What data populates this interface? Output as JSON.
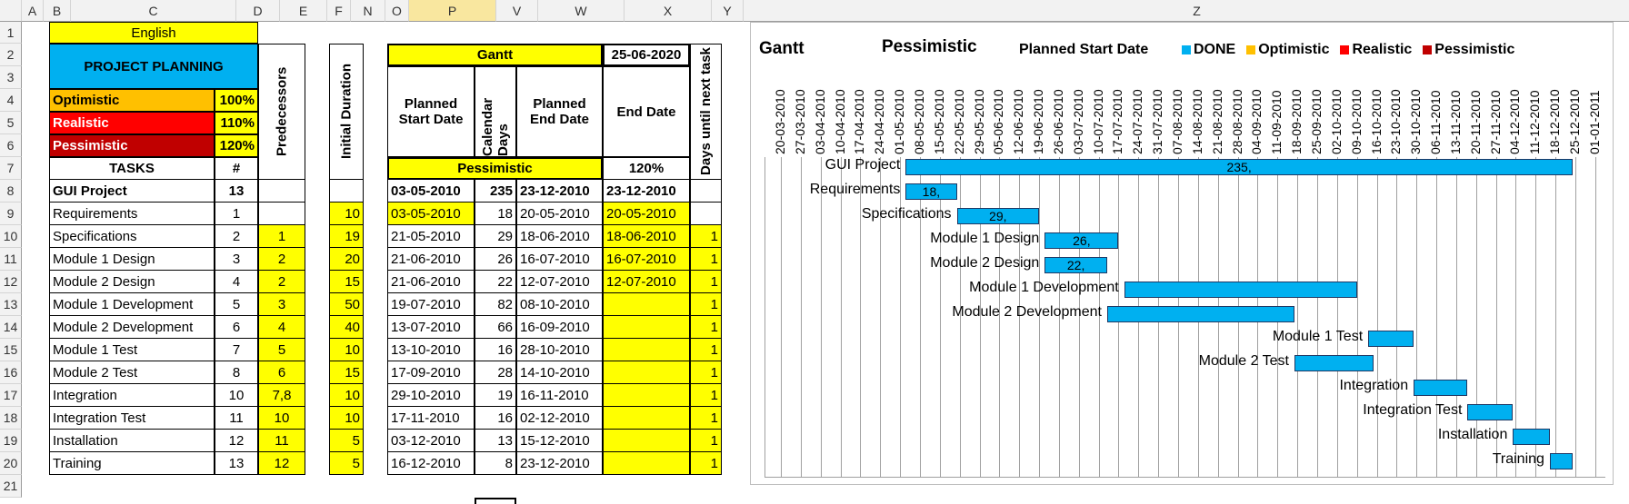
{
  "columns": [
    "A",
    "B",
    "C",
    "D",
    "E",
    "F",
    "N",
    "O",
    "P",
    "V",
    "W",
    "X",
    "Y",
    "Z"
  ],
  "rows": [
    "1",
    "2",
    "3",
    "4",
    "5",
    "6",
    "7",
    "8",
    "9",
    "10",
    "11",
    "12",
    "13",
    "14",
    "15",
    "16",
    "17",
    "18",
    "19",
    "20",
    "21"
  ],
  "sheet": {
    "language": "English",
    "title": "PROJECT PLANNING",
    "scenarios": [
      {
        "label": "Optimistic",
        "value": "100%"
      },
      {
        "label": "Realistic",
        "value": "110%"
      },
      {
        "label": "Pessimistic",
        "value": "120%"
      }
    ],
    "tasks_header": "TASKS",
    "num_header": "#",
    "predecessors_header": "Predecessors",
    "initial_duration_header": "Initial Duration",
    "gantt_header": "Gantt",
    "date": "25-06-2020",
    "planned_start_header": "Planned Start Date",
    "calendar_days_header": "Calendar Days",
    "planned_end_header": "Planned End Date",
    "end_date_header": "End Date",
    "days_next_header": "Days until next task",
    "scenario_name": "Pessimistic",
    "scenario_value": "120%",
    "tasks": [
      {
        "name": "GUI Project",
        "num": "13",
        "pred": "",
        "dur": "",
        "start": "03-05-2010",
        "days": "235",
        "pend": "23-12-2010",
        "end": "23-12-2010",
        "next": ""
      },
      {
        "name": "Requirements",
        "num": "1",
        "pred": "",
        "dur": "10",
        "start": "03-05-2010",
        "days": "18",
        "pend": "20-05-2010",
        "end": "20-05-2010",
        "next": ""
      },
      {
        "name": "Specifications",
        "num": "2",
        "pred": "1",
        "dur": "19",
        "start": "21-05-2010",
        "days": "29",
        "pend": "18-06-2010",
        "end": "18-06-2010",
        "next": "1"
      },
      {
        "name": "Module 1 Design",
        "num": "3",
        "pred": "2",
        "dur": "20",
        "start": "21-06-2010",
        "days": "26",
        "pend": "16-07-2010",
        "end": "16-07-2010",
        "next": "1"
      },
      {
        "name": "Module 2 Design",
        "num": "4",
        "pred": "2",
        "dur": "15",
        "start": "21-06-2010",
        "days": "22",
        "pend": "12-07-2010",
        "end": "12-07-2010",
        "next": "1"
      },
      {
        "name": "Module 1 Development",
        "num": "5",
        "pred": "3",
        "dur": "50",
        "start": "19-07-2010",
        "days": "82",
        "pend": "08-10-2010",
        "end": "",
        "next": "1"
      },
      {
        "name": "Module 2 Development",
        "num": "6",
        "pred": "4",
        "dur": "40",
        "start": "13-07-2010",
        "days": "66",
        "pend": "16-09-2010",
        "end": "",
        "next": "1"
      },
      {
        "name": "Module 1 Test",
        "num": "7",
        "pred": "5",
        "dur": "10",
        "start": "13-10-2010",
        "days": "16",
        "pend": "28-10-2010",
        "end": "",
        "next": "1"
      },
      {
        "name": "Module 2 Test",
        "num": "8",
        "pred": "6",
        "dur": "15",
        "start": "17-09-2010",
        "days": "28",
        "pend": "14-10-2010",
        "end": "",
        "next": "1"
      },
      {
        "name": "Integration",
        "num": "10",
        "pred": "7,8",
        "dur": "10",
        "start": "29-10-2010",
        "days": "19",
        "pend": "16-11-2010",
        "end": "",
        "next": "1"
      },
      {
        "name": "Integration Test",
        "num": "11",
        "pred": "10",
        "dur": "10",
        "start": "17-11-2010",
        "days": "16",
        "pend": "02-12-2010",
        "end": "",
        "next": "1"
      },
      {
        "name": "Installation",
        "num": "12",
        "pred": "11",
        "dur": "5",
        "start": "03-12-2010",
        "days": "13",
        "pend": "15-12-2010",
        "end": "",
        "next": "1"
      },
      {
        "name": "Training",
        "num": "13",
        "pred": "12",
        "dur": "5",
        "start": "16-12-2010",
        "days": "8",
        "pend": "23-12-2010",
        "end": "",
        "next": "1"
      }
    ]
  },
  "gantt": {
    "title": "Gantt",
    "scenario": "Pessimistic",
    "legend_title": "Planned Start Date",
    "legend": [
      {
        "label": "DONE",
        "color": "#00b0f0"
      },
      {
        "label": "Optimistic",
        "color": "#ffc000"
      },
      {
        "label": "Realistic",
        "color": "#ff0000"
      },
      {
        "label": "Pessimistic",
        "color": "#c00000"
      }
    ],
    "dates": [
      "20-03-2010",
      "27-03-2010",
      "03-04-2010",
      "10-04-2010",
      "17-04-2010",
      "24-04-2010",
      "01-05-2010",
      "08-05-2010",
      "15-05-2010",
      "22-05-2010",
      "29-05-2010",
      "05-06-2010",
      "12-06-2010",
      "19-06-2010",
      "26-06-2010",
      "03-07-2010",
      "10-07-2010",
      "17-07-2010",
      "24-07-2010",
      "31-07-2010",
      "07-08-2010",
      "14-08-2010",
      "21-08-2010",
      "28-08-2010",
      "04-09-2010",
      "11-09-2010",
      "18-09-2010",
      "25-09-2010",
      "02-10-2010",
      "09-10-2010",
      "16-10-2010",
      "23-10-2010",
      "30-10-2010",
      "06-11-2010",
      "13-11-2010",
      "20-11-2010",
      "27-11-2010",
      "04-12-2010",
      "11-12-2010",
      "18-12-2010",
      "25-12-2010",
      "01-01-2011"
    ],
    "bars": [
      {
        "task": "GUI Project",
        "start": "03-05-2010",
        "days": 235,
        "label": "235,"
      },
      {
        "task": "Requirements",
        "start": "03-05-2010",
        "days": 18,
        "label": "18,"
      },
      {
        "task": "Specifications",
        "start": "21-05-2010",
        "days": 29,
        "label": "29,"
      },
      {
        "task": "Module 1 Design",
        "start": "21-06-2010",
        "days": 26,
        "label": "26,"
      },
      {
        "task": "Module 2 Design",
        "start": "21-06-2010",
        "days": 22,
        "label": "22,"
      },
      {
        "task": "Module 1 Development",
        "start": "19-07-2010",
        "days": 82,
        "label": ""
      },
      {
        "task": "Module 2 Development",
        "start": "13-07-2010",
        "days": 66,
        "label": ""
      },
      {
        "task": "Module 1 Test",
        "start": "13-10-2010",
        "days": 16,
        "label": ""
      },
      {
        "task": "Module 2 Test",
        "start": "17-09-2010",
        "days": 28,
        "label": ""
      },
      {
        "task": "Integration",
        "start": "29-10-2010",
        "days": 19,
        "label": ""
      },
      {
        "task": "Integration Test",
        "start": "17-11-2010",
        "days": 16,
        "label": ""
      },
      {
        "task": "Installation",
        "start": "03-12-2010",
        "days": 13,
        "label": ""
      },
      {
        "task": "Training",
        "start": "16-12-2010",
        "days": 8,
        "label": ""
      }
    ]
  }
}
